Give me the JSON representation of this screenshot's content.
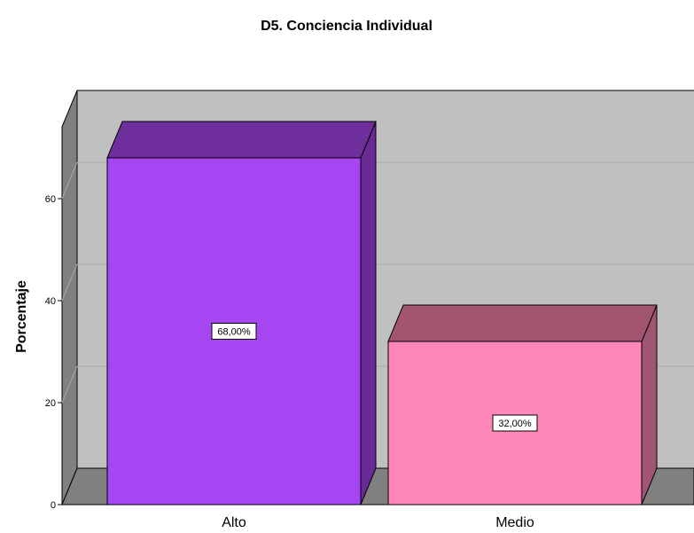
{
  "chart_data": {
    "type": "bar",
    "title": "D5. Conciencia Individual",
    "ylabel": "Porcentaje",
    "xlabel": "",
    "categories": [
      "Alto",
      "Medio"
    ],
    "values": [
      68.0,
      32.0
    ],
    "data_labels": [
      "68,00%",
      "32,00%"
    ],
    "ylim": [
      0,
      75
    ],
    "yticks": [
      0,
      20,
      40,
      60
    ],
    "grid": true,
    "style": "3d",
    "colors": {
      "front": [
        "#a546f2",
        "#fe86b8"
      ],
      "top": [
        "#6e2e9c",
        "#a15570"
      ],
      "side": [
        "#6a2a96",
        "#a05572"
      ],
      "wall": "#c0c0c0",
      "floor": "#808080",
      "gridline": "#a9a9a9"
    }
  }
}
